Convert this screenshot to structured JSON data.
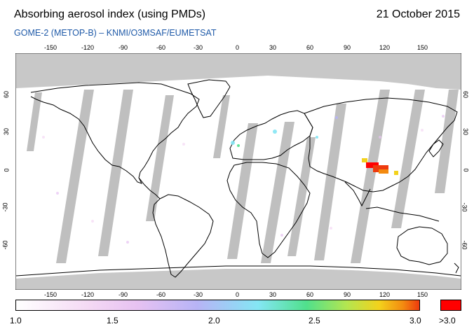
{
  "header": {
    "title": "Absorbing aerosol index (using PMDs)",
    "date": "21 October 2015",
    "subtitle": "GOME-2 (METOP-B)  –  KNMI/O3MSAF/EUMETSAT"
  },
  "map": {
    "lon_ticks": [
      "-150",
      "-120",
      "-90",
      "-60",
      "-30",
      "0",
      "30",
      "60",
      "90",
      "120",
      "150"
    ],
    "lat_ticks": [
      "60",
      "30",
      "0",
      "-30",
      "-60"
    ],
    "colors": {
      "gap": "#b4b4b4",
      "polar": "#c8c8c8",
      "coast": "#000000",
      "over": "#ff0000"
    }
  },
  "colorbar": {
    "labels": [
      "1.0",
      "1.5",
      "2.0",
      "2.5",
      "3.0"
    ],
    "over_label": ">3.0"
  }
}
